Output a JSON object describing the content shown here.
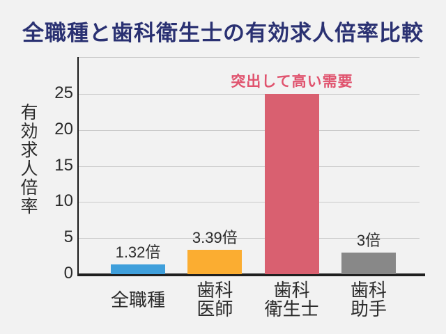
{
  "title": "全職種と歯科衛生士の有効求人倍率比較",
  "colors": {
    "background": "#f2f2f2",
    "title": "#2a3172",
    "annotation": "#e0536e",
    "axis": "#1a1a1a",
    "grid": "#c9c9c9",
    "text": "#2b2b2b"
  },
  "chart_data": {
    "type": "bar",
    "title": "全職種と歯科衛生士の有効求人倍率比較",
    "ylabel": "有効求人倍率",
    "xlabel": "",
    "ylim": [
      0,
      30
    ],
    "yticks": [
      0,
      5,
      10,
      15,
      20,
      25
    ],
    "grid": true,
    "legend": false,
    "categories": [
      "全職種",
      "歯科\n医師",
      "歯科\n衛生士",
      "歯科\n助手"
    ],
    "values": [
      1.32,
      3.39,
      25,
      3
    ],
    "value_labels": [
      "1.32倍",
      "3.39倍",
      "",
      "3倍"
    ],
    "bar_colors": [
      "#3f9fdb",
      "#fbad31",
      "#d96070",
      "#888888"
    ],
    "annotation": {
      "text": "突出して高い需要",
      "target": "歯科衛生士"
    }
  }
}
